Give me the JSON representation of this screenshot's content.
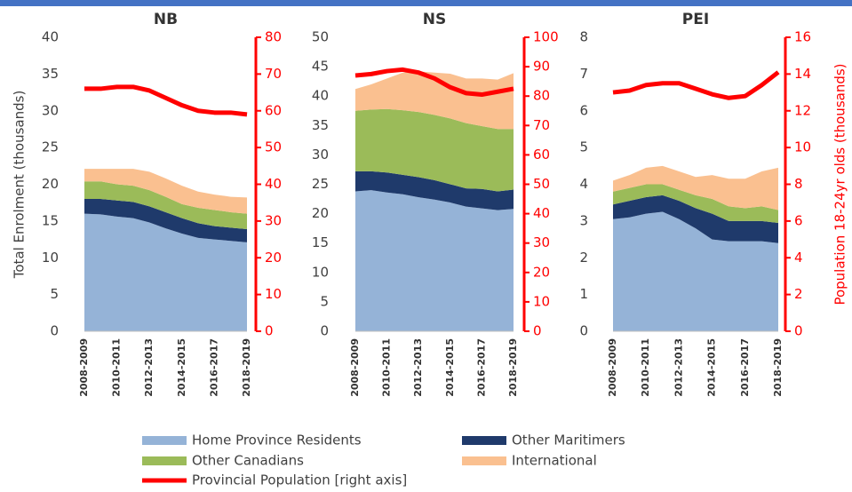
{
  "chart_data": [
    {
      "type": "area",
      "title": "NB",
      "categories": [
        "2008-2009",
        null,
        "2010-2011",
        null,
        "2012-2013",
        null,
        "2014-2015",
        null,
        "2016-2017",
        null,
        "2018-2019"
      ],
      "ylabel": "Total Enrolment (thousands)",
      "ylim": [
        0,
        40
      ],
      "yticks": [
        0,
        5,
        10,
        15,
        20,
        25,
        30,
        35,
        40
      ],
      "y2lim": [
        0,
        80
      ],
      "y2ticks": [
        0,
        10,
        20,
        30,
        40,
        50,
        60,
        70,
        80
      ],
      "series": [
        {
          "name": "Home Province Residents",
          "color": "#95b3d7",
          "values": [
            16.0,
            15.9,
            15.6,
            15.4,
            14.8,
            14.0,
            13.3,
            12.7,
            12.5,
            12.3,
            12.1
          ]
        },
        {
          "name": "Other Maritimers",
          "color": "#1f3a6b",
          "values": [
            2.0,
            2.1,
            2.2,
            2.2,
            2.2,
            2.2,
            2.1,
            2.0,
            1.8,
            1.8,
            1.8
          ]
        },
        {
          "name": "Other Canadians",
          "color": "#9bbb59",
          "values": [
            2.4,
            2.4,
            2.2,
            2.2,
            2.2,
            2.1,
            1.9,
            2.1,
            2.2,
            2.1,
            2.1
          ]
        },
        {
          "name": "International",
          "color": "#fac090",
          "values": [
            1.7,
            1.7,
            2.1,
            2.3,
            2.5,
            2.5,
            2.5,
            2.2,
            2.1,
            2.1,
            2.2
          ]
        },
        {
          "name": "Provincial Population [right axis]",
          "color": "#ff0000",
          "axis": "y2",
          "type": "line",
          "values": [
            66,
            66,
            66.5,
            66.5,
            65.5,
            63.5,
            61.5,
            60,
            59.5,
            59.5,
            59
          ]
        }
      ]
    },
    {
      "type": "area",
      "title": "NS",
      "categories": [
        "2008-2009",
        null,
        "2010-2011",
        null,
        "2012-2013",
        null,
        "2014-2015",
        null,
        "2016-2017",
        null,
        "2018-2019"
      ],
      "ylim": [
        0,
        50
      ],
      "yticks": [
        0,
        5,
        10,
        15,
        20,
        25,
        30,
        35,
        40,
        45,
        50
      ],
      "y2lim": [
        0,
        100
      ],
      "y2ticks": [
        0,
        10,
        20,
        30,
        40,
        50,
        60,
        70,
        80,
        90,
        100
      ],
      "series": [
        {
          "color": "#95b3d7",
          "values": [
            23.8,
            24.0,
            23.6,
            23.3,
            22.8,
            22.4,
            21.9,
            21.2,
            20.9,
            20.6,
            20.8
          ]
        },
        {
          "color": "#1f3a6b",
          "values": [
            3.4,
            3.2,
            3.4,
            3.3,
            3.4,
            3.3,
            3.1,
            3.1,
            3.3,
            3.2,
            3.3
          ]
        },
        {
          "color": "#9bbb59",
          "values": [
            10.3,
            10.5,
            10.8,
            11.0,
            11.1,
            11.1,
            11.2,
            11.1,
            10.7,
            10.6,
            10.3
          ]
        },
        {
          "color": "#fac090",
          "values": [
            3.7,
            4.3,
            5.2,
            6.4,
            6.9,
            7.2,
            7.6,
            7.6,
            8.1,
            8.4,
            9.5
          ]
        },
        {
          "color": "#ff0000",
          "axis": "y2",
          "type": "line",
          "values": [
            87,
            87.5,
            88.5,
            89,
            88,
            86,
            83,
            81,
            80.5,
            81.5,
            82.5
          ]
        }
      ]
    },
    {
      "type": "area",
      "title": "PEI",
      "categories": [
        "2008-2009",
        null,
        "2010-2011",
        null,
        "2012-2013",
        null,
        "2014-2015",
        null,
        "2016-2017",
        null,
        "2018-2019"
      ],
      "y2label": "Population 18-24yr olds (thousands)",
      "ylim": [
        0,
        8
      ],
      "yticks": [
        0,
        1,
        2,
        3,
        4,
        5,
        6,
        7,
        8
      ],
      "y2lim": [
        0,
        16
      ],
      "y2ticks": [
        0,
        2,
        4,
        6,
        8,
        10,
        12,
        14,
        16
      ],
      "series": [
        {
          "color": "#95b3d7",
          "values": [
            3.05,
            3.1,
            3.2,
            3.25,
            3.05,
            2.8,
            2.5,
            2.45,
            2.45,
            2.45,
            2.4
          ]
        },
        {
          "color": "#1f3a6b",
          "values": [
            0.4,
            0.45,
            0.45,
            0.45,
            0.5,
            0.55,
            0.7,
            0.55,
            0.55,
            0.55,
            0.55
          ]
        },
        {
          "color": "#9bbb59",
          "values": [
            0.35,
            0.35,
            0.35,
            0.3,
            0.3,
            0.35,
            0.4,
            0.4,
            0.35,
            0.4,
            0.35
          ]
        },
        {
          "color": "#fac090",
          "values": [
            0.3,
            0.35,
            0.45,
            0.5,
            0.5,
            0.5,
            0.65,
            0.75,
            0.8,
            0.95,
            1.15
          ]
        },
        {
          "color": "#ff0000",
          "axis": "y2",
          "type": "line",
          "values": [
            13.0,
            13.1,
            13.4,
            13.5,
            13.5,
            13.2,
            12.9,
            12.7,
            12.8,
            13.4,
            14.1
          ]
        }
      ]
    }
  ]
}
